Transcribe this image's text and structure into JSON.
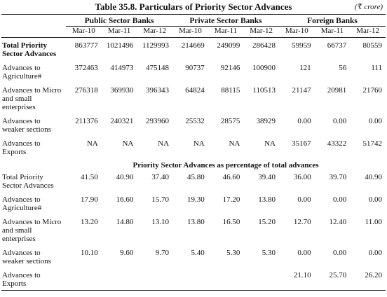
{
  "title": "Table 35.8. Particulars of Priority Sector Advances",
  "unit": "(₹ crore)",
  "groups": [
    "Public Sector Banks",
    "Private Sector Banks",
    "Foreign Banks"
  ],
  "periods": [
    "Mar-10",
    "Mar-11",
    "Mar-12",
    "Mar-10",
    "Mar-11",
    "Mar-12",
    "Mar-10",
    "Mar-11",
    "Mar-12"
  ],
  "rows": [
    {
      "label": "Total Priority Sector Advances",
      "values": [
        "863777",
        "1021496",
        "1129993",
        "214669",
        "249099",
        "286428",
        "59959",
        "66737",
        "80559"
      ]
    },
    {
      "label": "Advances to Agriculture#",
      "values": [
        "372463",
        "414973",
        "475148",
        "90737",
        "92146",
        "100900",
        "121",
        "56",
        "111"
      ]
    },
    {
      "label": "Advances to Micro and small enterprises",
      "values": [
        "276318",
        "369930",
        "396343",
        "64824",
        "88115",
        "110513",
        "21147",
        "20981",
        "21760"
      ]
    },
    {
      "label": "Advances to weaker sections",
      "values": [
        "211376",
        "240321",
        "293960",
        "25532",
        "28575",
        "38929",
        "0.00",
        "0.00",
        "0.00"
      ]
    },
    {
      "label": "Advances to Exports",
      "values": [
        "NA",
        "NA",
        "NA",
        "NA",
        "NA",
        "NA",
        "35167",
        "43322",
        "51742"
      ]
    }
  ],
  "section_heading": "Priority Sector Advances as percentage of total advances",
  "percent_rows": [
    {
      "label": "Total Priority Sector Advances",
      "values": [
        "41.50",
        "40.90",
        "37.40",
        "45.80",
        "46.60",
        "39.40",
        "36.00",
        "39.70",
        "40.90"
      ]
    },
    {
      "label": "Advances to Agriculture#",
      "values": [
        "17.90",
        "16.60",
        "15.70",
        "19.30",
        "17.20",
        "13.80",
        "0.00",
        "0.00",
        "0.00"
      ]
    },
    {
      "label": "Advances to Micro and small enterprises",
      "values": [
        "13.20",
        "14.80",
        "13.10",
        "13.80",
        "16.50",
        "15.20",
        "12.70",
        "12.40",
        "11.00"
      ]
    },
    {
      "label": "Advances to weaker sections",
      "values": [
        "10.10",
        "9.60",
        "9.70",
        "5.40",
        "5.30",
        "5.30",
        "0.00",
        "0.00",
        "0.00"
      ]
    },
    {
      "label": "Advances to Exports",
      "values": [
        null,
        null,
        null,
        null,
        null,
        null,
        "21.10",
        "25.70",
        "26.20"
      ]
    }
  ]
}
